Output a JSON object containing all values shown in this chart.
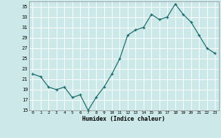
{
  "x": [
    0,
    1,
    2,
    3,
    4,
    5,
    6,
    7,
    8,
    9,
    10,
    11,
    12,
    13,
    14,
    15,
    16,
    17,
    18,
    19,
    20,
    21,
    22,
    23
  ],
  "y": [
    22,
    21.5,
    19.5,
    19,
    19.5,
    17.5,
    18,
    15,
    17.5,
    19.5,
    22,
    25,
    29.5,
    30.5,
    31,
    33.5,
    32.5,
    33,
    35.5,
    33.5,
    32,
    29.5,
    27,
    26
  ],
  "xlabel": "Humidex (Indice chaleur)",
  "bg_color": "#cce8e8",
  "line_color": "#1a6b6b",
  "grid_color": "#ffffff",
  "ylim": [
    15,
    36
  ],
  "yticks": [
    15,
    17,
    19,
    21,
    23,
    25,
    27,
    29,
    31,
    33,
    35
  ],
  "xlim": [
    -0.5,
    23.5
  ],
  "xticks": [
    0,
    1,
    2,
    3,
    4,
    5,
    6,
    7,
    8,
    9,
    10,
    11,
    12,
    13,
    14,
    15,
    16,
    17,
    18,
    19,
    20,
    21,
    22,
    23
  ]
}
